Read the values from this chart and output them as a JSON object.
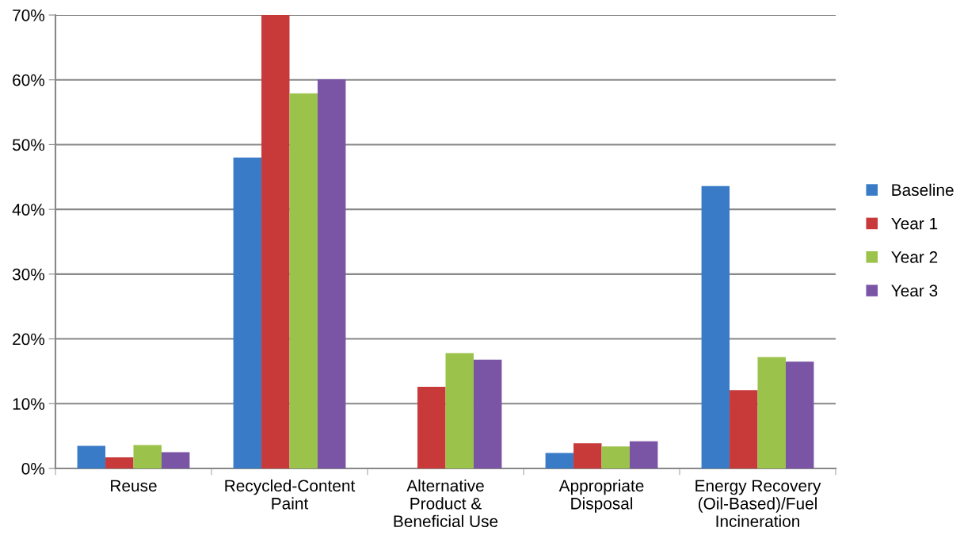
{
  "chart_data": {
    "type": "bar",
    "categories": [
      "Reuse",
      "Recycled-Content\nPaint",
      "Alternative\nProduct &\nBeneficial Use",
      "Appropriate\nDisposal",
      "Energy Recovery\n(Oil-Based)/Fuel\nIncineration"
    ],
    "series": [
      {
        "name": "Baseline",
        "color": "#3a7bc8",
        "values": [
          3.5,
          48.0,
          0,
          2.4,
          43.6
        ]
      },
      {
        "name": "Year 1",
        "color": "#c83a3a",
        "values": [
          1.7,
          70,
          12.6,
          3.9,
          12.1
        ]
      },
      {
        "name": "Year 2",
        "color": "#9bc24a",
        "values": [
          3.6,
          57.9,
          17.8,
          3.4,
          17.2
        ]
      },
      {
        "name": "Year 3",
        "color": "#7a55a5",
        "values": [
          2.5,
          60.1,
          16.8,
          4.2,
          16.5
        ]
      }
    ],
    "ylim": [
      0,
      70
    ],
    "yticks": [
      {
        "value": 0,
        "label": "0%"
      },
      {
        "value": 10,
        "label": "10%"
      },
      {
        "value": 20,
        "label": "20%"
      },
      {
        "value": 30,
        "label": "30%"
      },
      {
        "value": 40,
        "label": "40%"
      },
      {
        "value": 50,
        "label": "50%"
      },
      {
        "value": 60,
        "label": "60%"
      },
      {
        "value": 70,
        "label": "70%"
      }
    ],
    "grid": "y",
    "legend": "right"
  }
}
